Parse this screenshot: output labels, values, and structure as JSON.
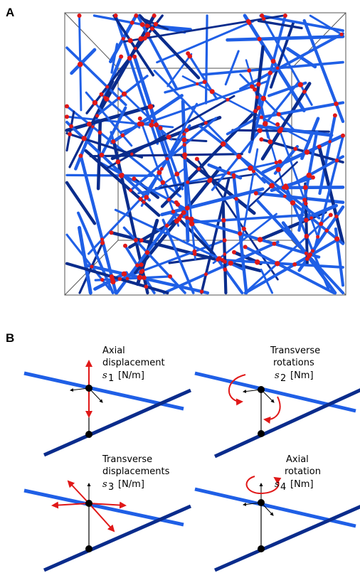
{
  "panel_a": {
    "label": "A"
  },
  "panel_b": {
    "label": "B",
    "modes": [
      {
        "line1": "Axial",
        "line2": "displacement",
        "symbol": "s",
        "sub": "1",
        "unit": "[N/m]"
      },
      {
        "line1": "Transverse",
        "line2": "rotations",
        "symbol": "s",
        "sub": "2",
        "unit": "[Nm]"
      },
      {
        "line1": "Transverse",
        "line2": "displacements",
        "symbol": "s",
        "sub": "3",
        "unit": "[N/m]"
      },
      {
        "line1": "Axial",
        "line2": "rotation",
        "symbol": "s",
        "sub": "4",
        "unit": "[Nm]"
      }
    ]
  },
  "colors": {
    "fiber_light": "#1f5fe6",
    "fiber_dark": "#0a2c8c",
    "crosslink": "#e01818",
    "arrow": "#e01818",
    "frame": "#555555"
  }
}
